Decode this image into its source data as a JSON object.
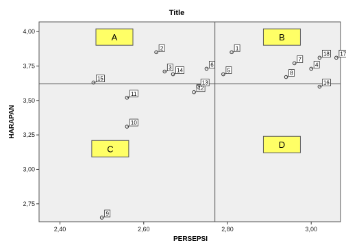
{
  "chart_data": {
    "type": "scatter",
    "title": "Title",
    "xlabel": "PERSEPSI",
    "ylabel": "HARAPAN",
    "xlim": [
      2.35,
      3.07
    ],
    "ylim": [
      2.62,
      4.07
    ],
    "xticks": [
      2.4,
      2.6,
      2.8,
      3.0
    ],
    "xtick_labels": [
      "2,40",
      "2,60",
      "2,80",
      "3,00"
    ],
    "yticks": [
      2.75,
      3.0,
      3.25,
      3.5,
      3.75,
      4.0
    ],
    "ytick_labels": [
      "2,75",
      "3,00",
      "3,25",
      "3,50",
      "3,75",
      "4,00"
    ],
    "grid": false,
    "reference_lines": {
      "x": 2.77,
      "y": 3.62
    },
    "points": [
      {
        "label": "1",
        "x": 2.81,
        "y": 3.85
      },
      {
        "label": "2",
        "x": 2.63,
        "y": 3.85
      },
      {
        "label": "3",
        "x": 2.65,
        "y": 3.71
      },
      {
        "label": "4",
        "x": 3.0,
        "y": 3.73
      },
      {
        "label": "5",
        "x": 2.79,
        "y": 3.69
      },
      {
        "label": "6",
        "x": 2.75,
        "y": 3.73
      },
      {
        "label": "7",
        "x": 2.96,
        "y": 3.77
      },
      {
        "label": "8",
        "x": 2.94,
        "y": 3.67
      },
      {
        "label": "9",
        "x": 2.5,
        "y": 2.65
      },
      {
        "label": "10",
        "x": 2.56,
        "y": 3.31
      },
      {
        "label": "11",
        "x": 2.56,
        "y": 3.52
      },
      {
        "label": "12",
        "x": 2.72,
        "y": 3.56
      },
      {
        "label": "13",
        "x": 2.73,
        "y": 3.6
      },
      {
        "label": "14",
        "x": 2.67,
        "y": 3.69
      },
      {
        "label": "15",
        "x": 2.48,
        "y": 3.63
      },
      {
        "label": "16",
        "x": 3.02,
        "y": 3.6
      },
      {
        "label": "17",
        "x": 3.06,
        "y": 3.81
      },
      {
        "label": "18",
        "x": 3.02,
        "y": 3.81
      }
    ],
    "quadrants": [
      {
        "label": "A",
        "x": 2.53,
        "y": 3.96
      },
      {
        "label": "B",
        "x": 2.93,
        "y": 3.96
      },
      {
        "label": "C",
        "x": 2.52,
        "y": 3.15
      },
      {
        "label": "D",
        "x": 2.93,
        "y": 3.18
      }
    ],
    "colors": {
      "plot_background": "#efefef",
      "quadrant_fill": "#ffff66",
      "marker_edge": "#333333",
      "reference_line": "#555555"
    }
  }
}
